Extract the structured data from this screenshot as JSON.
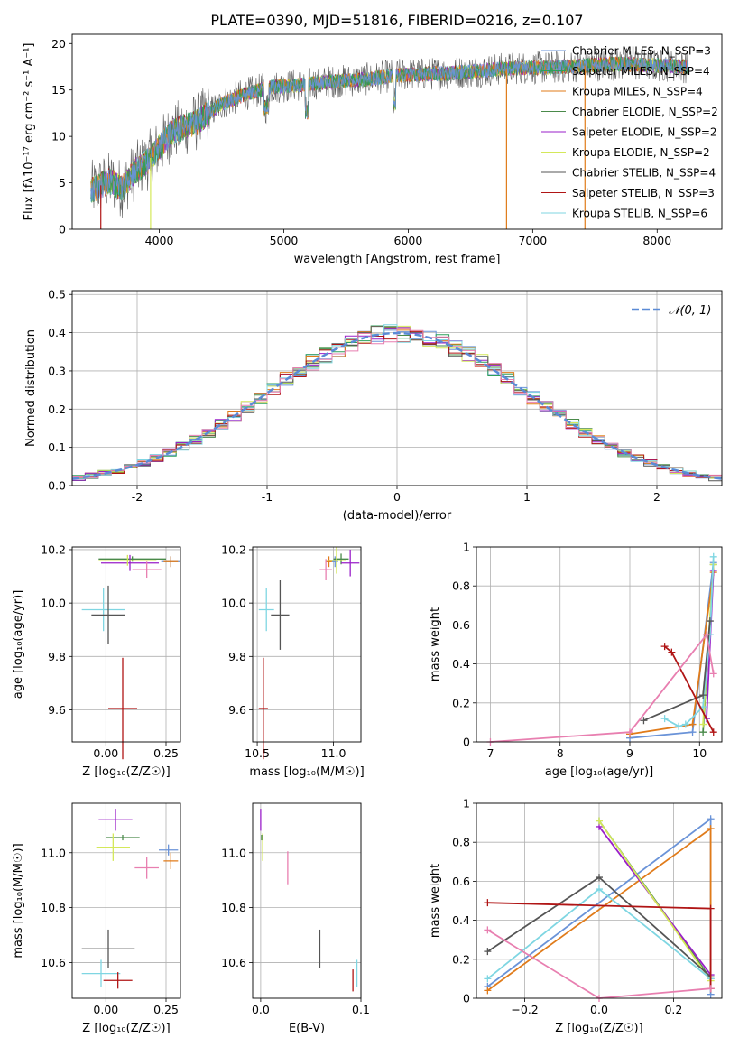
{
  "figure": {
    "title": "PLATE=0390, MJD=51816, FIBERID=0216, z=0.107"
  },
  "colors": {
    "chabrier_miles": "#6a93d8",
    "salpeter_miles": "#2ca05a",
    "kroupa_miles": "#e07b1a",
    "chabrier_elodie": "#4a8a4a",
    "salpeter_elodie": "#9a1fc9",
    "kroupa_elodie": "#d4e85a",
    "chabrier_stelib": "#555555",
    "salpeter_stelib": "#b01515",
    "kroupa_stelib": "#7fd6e2",
    "pink": "#e87fb0",
    "gaussian": "#5b8bd6"
  },
  "chart_data": [
    {
      "id": "spectrum",
      "type": "line",
      "title": "PLATE=0390, MJD=51816, FIBERID=0216, z=0.107",
      "xlabel": "wavelength [Angstrom, rest frame]",
      "ylabel": "Flux [fλ10⁻¹⁷ erg cm⁻² s⁻¹ A⁻¹]",
      "xlim": [
        3300,
        8520
      ],
      "ylim": [
        0,
        21
      ],
      "xticks": [
        4000,
        5000,
        6000,
        7000,
        8000
      ],
      "yticks": [
        0,
        5,
        10,
        15,
        20
      ],
      "legend_position": "top-right",
      "legend": [
        "Chabrier MILES, N_SSP=3",
        "Salpeter MILES, N_SSP=4",
        "Kroupa MILES, N_SSP=4",
        "Chabrier ELODIE, N_SSP=2",
        "Salpeter ELODIE, N_SSP=2",
        "Kroupa ELODIE, N_SSP=2",
        "Chabrier STELIB, N_SSP=4",
        "Salpeter STELIB, N_SSP=3",
        "Kroupa STELIB, N_SSP=6"
      ],
      "continuum": {
        "x": [
          3450,
          3600,
          3700,
          3800,
          3900,
          4000,
          4100,
          4300,
          4500,
          4700,
          4900,
          5100,
          5300,
          5500,
          5700,
          5900,
          6100,
          6300,
          6500,
          6700,
          6900,
          7100,
          7300,
          7500,
          7700,
          7900,
          8100,
          8250
        ],
        "y": [
          4.2,
          5.2,
          4.4,
          6.2,
          7.2,
          8.8,
          10.5,
          11.5,
          13.5,
          14.6,
          15.3,
          15.5,
          15.8,
          16.0,
          16.2,
          16.6,
          16.7,
          16.8,
          17.0,
          17.2,
          17.4,
          17.4,
          17.5,
          17.7,
          17.8,
          17.7,
          17.6,
          17.5
        ]
      },
      "dips": [
        {
          "x": 3530,
          "y": 0
        },
        {
          "x": 3930,
          "y": 0
        },
        {
          "x": 6790,
          "y": 0
        },
        {
          "x": 7420,
          "y": 0
        }
      ]
    },
    {
      "id": "residuals",
      "type": "line",
      "xlabel": "(data-model)/error",
      "ylabel": "Normed distribution",
      "xlim": [
        -2.5,
        2.5
      ],
      "ylim": [
        0,
        0.51
      ],
      "xticks": [
        -2,
        -1,
        0,
        1,
        2
      ],
      "yticks": [
        0,
        0.1,
        0.2,
        0.3,
        0.4,
        0.5
      ],
      "legend_position": "top-right",
      "gaussian_label": "𝒩(0, 1)",
      "bin_width": 0.1,
      "hist_bin_edges_start": -2.5
    },
    {
      "id": "age_vs_Z",
      "type": "scatter",
      "xlabel": "Z [log₁₀(Z/Z☉)]",
      "ylabel": "age  [log₁₀(age/yr)]",
      "xlim": [
        -0.14,
        0.31
      ],
      "ylim": [
        9.48,
        10.21
      ],
      "xticks": [
        0.0,
        0.25
      ],
      "xticklabels": [
        "0.00",
        "0.25"
      ],
      "yticks": [
        9.6,
        9.8,
        10.0,
        10.2
      ],
      "yticklabels": [
        "9.6",
        "9.8",
        "10.0",
        "10.2"
      ],
      "points": [
        {
          "x": 0.27,
          "y": 10.155,
          "xerr": 0.04,
          "yerr": 0.02,
          "color": "#6a93d8"
        },
        {
          "x": 0.27,
          "y": 10.155,
          "xerr": 0.03,
          "yerr": 0.02,
          "color": "#e07b1a"
        },
        {
          "x": 0.11,
          "y": 10.165,
          "xerr": 0.14,
          "yerr": 0.01,
          "color": "#4a8a4a"
        },
        {
          "x": 0.1,
          "y": 10.15,
          "xerr": 0.12,
          "yerr": 0.03,
          "color": "#9a1fc9"
        },
        {
          "x": 0.09,
          "y": 10.16,
          "xerr": 0.12,
          "yerr": 0.02,
          "color": "#d4e85a"
        },
        {
          "x": 0.17,
          "y": 10.125,
          "xerr": 0.06,
          "yerr": 0.03,
          "color": "#e87fb0"
        },
        {
          "x": -0.01,
          "y": 9.975,
          "xerr": 0.09,
          "yerr": 0.08,
          "color": "#7fd6e2"
        },
        {
          "x": 0.01,
          "y": 9.955,
          "xerr": 0.07,
          "yerr": 0.11,
          "color": "#555555"
        },
        {
          "x": 0.07,
          "y": 9.605,
          "xerr": 0.06,
          "yerr": 0.19,
          "color": "#b01515"
        }
      ]
    },
    {
      "id": "age_vs_mass",
      "type": "scatter",
      "xlabel": "mass [log₁₀(M/M☉)]",
      "ylabel": "",
      "xlim": [
        10.47,
        11.18
      ],
      "ylim": [
        9.48,
        10.21
      ],
      "xticks": [
        10.5,
        11.0
      ],
      "xticklabels": [
        "10.5",
        "11.0"
      ],
      "yticks": [
        9.6,
        9.8,
        10.0,
        10.2
      ],
      "yticklabels": [
        "9.6",
        "9.8",
        "10.0",
        "10.2"
      ],
      "points": [
        {
          "x": 11.01,
          "y": 10.155,
          "xerr": 0.02,
          "yerr": 0.02,
          "color": "#6a93d8"
        },
        {
          "x": 10.97,
          "y": 10.155,
          "xerr": 0.02,
          "yerr": 0.02,
          "color": "#e07b1a"
        },
        {
          "x": 11.05,
          "y": 10.165,
          "xerr": 0.05,
          "yerr": 0.02,
          "color": "#4a8a4a"
        },
        {
          "x": 11.11,
          "y": 10.15,
          "xerr": 0.06,
          "yerr": 0.05,
          "color": "#9a1fc9"
        },
        {
          "x": 11.02,
          "y": 10.16,
          "xerr": 0.06,
          "yerr": 0.05,
          "color": "#d4e85a"
        },
        {
          "x": 10.95,
          "y": 10.125,
          "xerr": 0.04,
          "yerr": 0.04,
          "color": "#e87fb0"
        },
        {
          "x": 10.56,
          "y": 9.975,
          "xerr": 0.05,
          "yerr": 0.08,
          "color": "#7fd6e2"
        },
        {
          "x": 10.65,
          "y": 9.955,
          "xerr": 0.06,
          "yerr": 0.13,
          "color": "#555555"
        },
        {
          "x": 10.54,
          "y": 9.605,
          "xerr": 0.03,
          "yerr": 0.19,
          "color": "#b01515"
        }
      ]
    },
    {
      "id": "weight_vs_age",
      "type": "line",
      "xlabel": "age  [log₁₀(age/yr)]",
      "ylabel": "mass weight",
      "xlim": [
        6.8,
        10.32
      ],
      "ylim": [
        0,
        1.0
      ],
      "xticks": [
        7,
        8,
        9,
        10
      ],
      "yticks": [
        0,
        0.2,
        0.4,
        0.6,
        0.8,
        1.0
      ],
      "series": [
        {
          "color": "#6a93d8",
          "x": [
            9.0,
            9.9,
            10.2
          ],
          "y": [
            0.02,
            0.05,
            0.92
          ]
        },
        {
          "color": "#e07b1a",
          "x": [
            9.0,
            9.9,
            10.2
          ],
          "y": [
            0.04,
            0.09,
            0.87
          ]
        },
        {
          "color": "#4a8a4a",
          "x": [
            10.05,
            10.2
          ],
          "y": [
            0.05,
            0.91
          ]
        },
        {
          "color": "#9a1fc9",
          "x": [
            10.1,
            10.2
          ],
          "y": [
            0.12,
            0.88
          ]
        },
        {
          "color": "#d4e85a",
          "x": [
            10.05,
            10.2
          ],
          "y": [
            0.09,
            0.91
          ]
        },
        {
          "color": "#7fd6e2",
          "x": [
            9.5,
            9.7,
            9.8,
            10.05,
            10.15,
            10.2
          ],
          "y": [
            0.12,
            0.08,
            0.09,
            0.18,
            0.55,
            0.95
          ]
        },
        {
          "color": "#555555",
          "x": [
            9.2,
            10.05,
            10.15
          ],
          "y": [
            0.11,
            0.24,
            0.62
          ]
        },
        {
          "color": "#b01515",
          "x": [
            9.5,
            9.6,
            10.2
          ],
          "y": [
            0.49,
            0.46,
            0.05
          ]
        },
        {
          "color": "#e87fb0",
          "x": [
            7.0,
            9.0,
            10.1,
            10.2
          ],
          "y": [
            0.0,
            0.05,
            0.55,
            0.35
          ]
        }
      ]
    },
    {
      "id": "mass_vs_Z",
      "type": "scatter",
      "xlabel": "Z [log₁₀(Z/Z☉)]",
      "ylabel": "mass [log₁₀(M/M☉)]",
      "xlim": [
        -0.14,
        0.31
      ],
      "ylim": [
        10.47,
        11.18
      ],
      "xticks": [
        0.0,
        0.25
      ],
      "xticklabels": [
        "0.00",
        "0.25"
      ],
      "yticks": [
        10.6,
        10.8,
        11.0
      ],
      "yticklabels": [
        "10.6",
        "10.8",
        "11.0"
      ],
      "points": [
        {
          "x": 0.26,
          "y": 11.01,
          "xerr": 0.04,
          "yerr": 0.02,
          "color": "#6a93d8"
        },
        {
          "x": 0.27,
          "y": 10.97,
          "xerr": 0.03,
          "yerr": 0.03,
          "color": "#e07b1a"
        },
        {
          "x": 0.07,
          "y": 11.055,
          "xerr": 0.07,
          "yerr": 0.01,
          "color": "#4a8a4a"
        },
        {
          "x": 0.04,
          "y": 11.12,
          "xerr": 0.07,
          "yerr": 0.04,
          "color": "#9a1fc9"
        },
        {
          "x": 0.03,
          "y": 11.02,
          "xerr": 0.07,
          "yerr": 0.05,
          "color": "#d4e85a"
        },
        {
          "x": 0.17,
          "y": 10.945,
          "xerr": 0.05,
          "yerr": 0.04,
          "color": "#e87fb0"
        },
        {
          "x": -0.02,
          "y": 10.56,
          "xerr": 0.08,
          "yerr": 0.05,
          "color": "#7fd6e2"
        },
        {
          "x": 0.01,
          "y": 10.65,
          "xerr": 0.11,
          "yerr": 0.07,
          "color": "#555555"
        },
        {
          "x": 0.05,
          "y": 10.535,
          "xerr": 0.06,
          "yerr": 0.03,
          "color": "#b01515"
        }
      ]
    },
    {
      "id": "mass_vs_ebv",
      "type": "scatter",
      "xlabel": "E(B-V)",
      "ylabel": "",
      "xlim": [
        -0.008,
        0.1
      ],
      "ylim": [
        10.47,
        11.18
      ],
      "xticks": [
        0.0,
        0.1
      ],
      "xticklabels": [
        "0.0",
        "0.1"
      ],
      "yticks": [
        10.6,
        10.8,
        11.0
      ],
      "yticklabels": [
        "10.6",
        "10.8",
        "11.0"
      ],
      "points": [
        {
          "x": 0.0,
          "y": 11.12,
          "yerr": 0.04,
          "color": "#9a1fc9"
        },
        {
          "x": 0.002,
          "y": 11.02,
          "yerr": 0.05,
          "color": "#d4e85a"
        },
        {
          "x": 0.001,
          "y": 11.055,
          "yerr": 0.01,
          "color": "#4a8a4a"
        },
        {
          "x": 0.027,
          "y": 10.945,
          "yerr": 0.06,
          "color": "#e87fb0"
        },
        {
          "x": 0.059,
          "y": 10.65,
          "yerr": 0.07,
          "color": "#555555"
        },
        {
          "x": 0.092,
          "y": 10.535,
          "yerr": 0.04,
          "color": "#b01515"
        },
        {
          "x": 0.096,
          "y": 10.56,
          "yerr": 0.05,
          "color": "#7fd6e2"
        }
      ]
    },
    {
      "id": "weight_vs_Z",
      "type": "line",
      "xlabel": "Z [log₁₀(Z/Z☉)]",
      "ylabel": "mass weight",
      "xlim": [
        -0.33,
        0.33
      ],
      "ylim": [
        0,
        1.0
      ],
      "xticks": [
        -0.2,
        0.0,
        0.2
      ],
      "xticklabels": [
        "−0.2",
        "0.0",
        "0.2"
      ],
      "yticks": [
        0,
        0.2,
        0.4,
        0.6,
        0.8,
        1.0
      ],
      "series": [
        {
          "color": "#6a93d8",
          "x": [
            -0.3,
            0.3,
            0.3
          ],
          "y": [
            0.06,
            0.92,
            0.02
          ]
        },
        {
          "color": "#e07b1a",
          "x": [
            -0.3,
            0.3,
            0.3
          ],
          "y": [
            0.04,
            0.87,
            0.05
          ]
        },
        {
          "color": "#4a8a4a",
          "x": [
            0.0,
            0.3
          ],
          "y": [
            0.91,
            0.1
          ]
        },
        {
          "color": "#9a1fc9",
          "x": [
            0.0,
            0.3
          ],
          "y": [
            0.88,
            0.12
          ]
        },
        {
          "color": "#d4e85a",
          "x": [
            0.0,
            0.3
          ],
          "y": [
            0.91,
            0.09
          ]
        },
        {
          "color": "#7fd6e2",
          "x": [
            -0.3,
            0.0,
            0.3
          ],
          "y": [
            0.1,
            0.56,
            0.1
          ]
        },
        {
          "color": "#555555",
          "x": [
            -0.3,
            0.0,
            0.3
          ],
          "y": [
            0.24,
            0.62,
            0.11
          ]
        },
        {
          "color": "#b01515",
          "x": [
            -0.3,
            0.3,
            0.3
          ],
          "y": [
            0.49,
            0.46,
            0.05
          ]
        },
        {
          "color": "#e87fb0",
          "x": [
            -0.3,
            0.0,
            0.3
          ],
          "y": [
            0.35,
            0.0,
            0.05
          ]
        }
      ]
    }
  ]
}
